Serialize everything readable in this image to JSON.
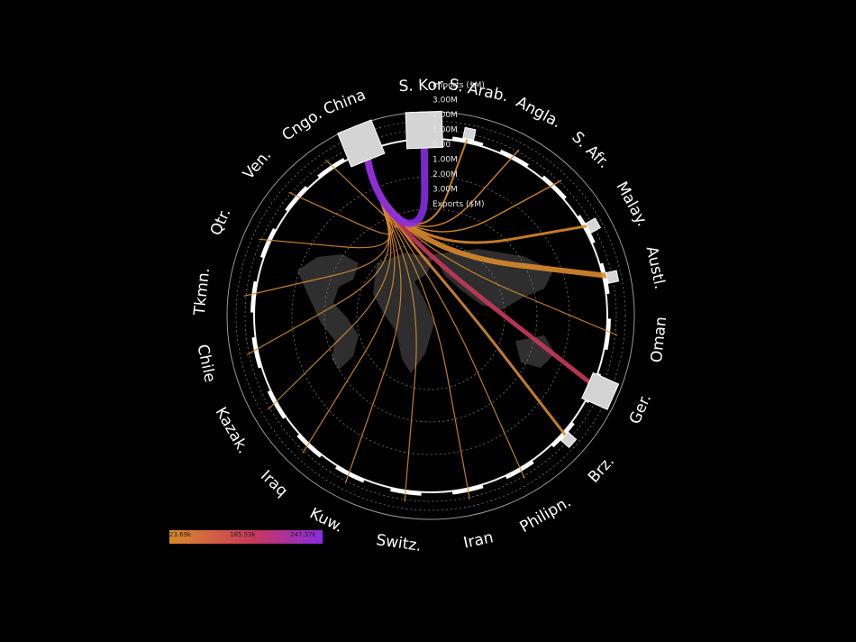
{
  "chart_data": {
    "type": "chord",
    "nodes": [
      {
        "name": "China",
        "angle": 158
      },
      {
        "name": "S. Kor.",
        "angle": 178
      },
      {
        "name": "S. Arab.",
        "angle": 192
      },
      {
        "name": "Angla.",
        "angle": 208
      },
      {
        "name": "S. Afr.",
        "angle": 224
      },
      {
        "name": "Malay.",
        "angle": 241
      },
      {
        "name": "Austl.",
        "angle": 258
      },
      {
        "name": "Oman",
        "angle": 276
      },
      {
        "name": "Ger.",
        "angle": 294
      },
      {
        "name": "Brz.",
        "angle": 312
      },
      {
        "name": "Philipn.",
        "angle": 330
      },
      {
        "name": "Iran",
        "angle": 348
      },
      {
        "name": "Switz.",
        "angle": 8
      },
      {
        "name": "Kuw.",
        "angle": 27
      },
      {
        "name": "Iraq",
        "angle": 43
      },
      {
        "name": "Kazak.",
        "angle": 60
      },
      {
        "name": "Chile",
        "angle": 78
      },
      {
        "name": "Tkmn.",
        "angle": 96
      },
      {
        "name": "Qtr.",
        "angle": 114
      },
      {
        "name": "Ven.",
        "angle": 131
      },
      {
        "name": "Cngo.",
        "angle": 146
      }
    ],
    "scale_ticks": [
      "Imports ($M)",
      "3.00M",
      "2.00M",
      "1.00M",
      "0.00",
      "1.00M",
      "2.00M",
      "3.00M",
      "Exports ($M)"
    ],
    "flows": [
      {
        "from": "China",
        "to": "S. Kor.",
        "value": 247370,
        "width": 8
      },
      {
        "from": "China",
        "to": "Ger.",
        "value": 185530,
        "width": 5
      },
      {
        "from": "China",
        "to": "S. Arab.",
        "value": 30000,
        "width": 2
      },
      {
        "from": "China",
        "to": "Angla.",
        "value": 28000,
        "width": 1.5
      },
      {
        "from": "China",
        "to": "S. Afr.",
        "value": 27000,
        "width": 1.5
      },
      {
        "from": "China",
        "to": "Malay.",
        "value": 40000,
        "width": 3
      },
      {
        "from": "China",
        "to": "Austl.",
        "value": 60000,
        "width": 6
      },
      {
        "from": "China",
        "to": "Oman",
        "value": 25000,
        "width": 1.2
      },
      {
        "from": "China",
        "to": "Brz.",
        "value": 40000,
        "width": 3
      },
      {
        "from": "China",
        "to": "Philipn.",
        "value": 25000,
        "width": 1.2
      },
      {
        "from": "China",
        "to": "Iran",
        "value": 26000,
        "width": 1.2
      },
      {
        "from": "China",
        "to": "Switz.",
        "value": 25000,
        "width": 1.2
      },
      {
        "from": "China",
        "to": "Kuw.",
        "value": 25000,
        "width": 1.2
      },
      {
        "from": "China",
        "to": "Iraq",
        "value": 25000,
        "width": 1.2
      },
      {
        "from": "China",
        "to": "Kazak.",
        "value": 24000,
        "width": 1.2
      },
      {
        "from": "China",
        "to": "Chile",
        "value": 24000,
        "width": 1.2
      },
      {
        "from": "China",
        "to": "Tkmn.",
        "value": 24000,
        "width": 1.2
      },
      {
        "from": "China",
        "to": "Qtr.",
        "value": 24000,
        "width": 1.2
      },
      {
        "from": "China",
        "to": "Ven.",
        "value": 24000,
        "width": 1.2
      },
      {
        "from": "China",
        "to": "Cngo.",
        "value": 24000,
        "width": 1.2
      }
    ],
    "legend": {
      "labels": [
        "23.69k",
        "185.53k",
        "247.37k"
      ],
      "colors": [
        "#d98a2c",
        "#c8385a",
        "#8a2be2"
      ]
    }
  }
}
